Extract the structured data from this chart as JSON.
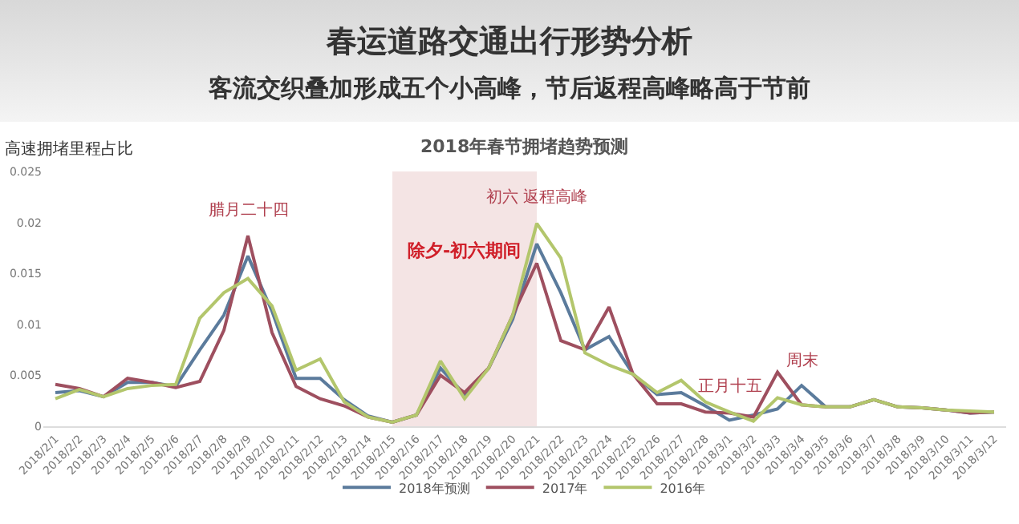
{
  "chart_data": {
    "type": "line",
    "title": "春运道路交通出行形势分析",
    "subtitle": "客流交织叠加形成五个小高峰，节后返程高峰略高于节前",
    "ylabel": "高速拥堵里程占比",
    "categories": [
      "2018/2/1",
      "2018/2/2",
      "2018/2/3",
      "2018/2/4",
      "2018/2/5",
      "2018/2/6",
      "2018/2/7",
      "2018/2/8",
      "2018/2/9",
      "2018/2/10",
      "2018/2/11",
      "2018/2/12",
      "2018/2/13",
      "2018/2/14",
      "2018/2/15",
      "2018/2/16",
      "2018/2/17",
      "2018/2/18",
      "2018/2/19",
      "2018/2/20",
      "2018/2/21",
      "2018/2/22",
      "2018/2/23",
      "2018/2/24",
      "2018/2/25",
      "2018/2/26",
      "2018/2/27",
      "2018/2/28",
      "2018/3/1",
      "2018/3/2",
      "2018/3/3",
      "2018/3/4",
      "2018/3/5",
      "2018/3/6",
      "2018/3/7",
      "2018/3/8",
      "2018/3/9",
      "2018/3/10",
      "2018/3/11",
      "2018/3/12"
    ],
    "series": [
      {
        "name": "2018年预测",
        "color": "#5b7b9c",
        "values": [
          0.0033,
          0.0035,
          0.0029,
          0.0043,
          0.0043,
          0.0039,
          0.0075,
          0.0109,
          0.0167,
          0.0113,
          0.0047,
          0.0047,
          0.0026,
          0.001,
          0.0004,
          0.0011,
          0.0057,
          0.0031,
          0.0057,
          0.0105,
          0.0179,
          0.0131,
          0.0075,
          0.0088,
          0.0051,
          0.0031,
          0.0033,
          0.002,
          0.0006,
          0.0011,
          0.0017,
          0.004,
          0.0019,
          0.0019,
          0.0026,
          0.0019,
          0.0018,
          0.0016,
          0.0013,
          0.0014
        ]
      },
      {
        "name": "2017年",
        "color": "#9e4f5f",
        "values": [
          0.0041,
          0.0037,
          0.0029,
          0.0047,
          0.0043,
          0.0038,
          0.0044,
          0.0094,
          0.0187,
          0.0092,
          0.0039,
          0.0027,
          0.002,
          0.0009,
          0.0004,
          0.0011,
          0.005,
          0.0033,
          0.0057,
          0.0109,
          0.016,
          0.0084,
          0.0075,
          0.0117,
          0.0051,
          0.0022,
          0.0022,
          0.0014,
          0.0013,
          0.0009,
          0.0053,
          0.0021,
          0.0019,
          0.0019,
          0.0026,
          0.0019,
          0.0018,
          0.0016,
          0.0013,
          0.0014
        ]
      },
      {
        "name": "2016年",
        "color": "#b3c66c",
        "values": [
          0.0027,
          0.0036,
          0.0029,
          0.0037,
          0.004,
          0.0041,
          0.0106,
          0.0131,
          0.0145,
          0.0118,
          0.0055,
          0.0066,
          0.0024,
          0.0009,
          0.0004,
          0.0011,
          0.0064,
          0.0027,
          0.0057,
          0.0109,
          0.0199,
          0.0165,
          0.0072,
          0.006,
          0.0051,
          0.0033,
          0.0045,
          0.0024,
          0.0014,
          0.0005,
          0.0028,
          0.0021,
          0.0019,
          0.0019,
          0.0026,
          0.0019,
          0.0018,
          0.0016,
          0.0015,
          0.0014
        ]
      }
    ],
    "ylim": [
      0,
      0.025
    ],
    "yticks": [
      0,
      0.005,
      0.01,
      0.015,
      0.02,
      0.025
    ],
    "legend": "bottom",
    "bands": [
      {
        "axis": "x",
        "from": "2018/2/15",
        "to": "2018/2/21",
        "label": "除夕-初六期间",
        "color": "#f4e4e4"
      }
    ],
    "annotations": [
      "2018年春节拥堵趋势预测",
      {
        "text": "腊月二十四",
        "x": "2018/2/9",
        "y": 0.0187
      },
      {
        "text": "初六 返程高峰",
        "x": "2018/2/21",
        "y": 0.0199
      },
      {
        "text": "正月十五",
        "x": "2018/3/1",
        "y": 0.0014
      },
      {
        "text": "周末",
        "x": "2018/3/4",
        "y": 0.004
      }
    ]
  }
}
